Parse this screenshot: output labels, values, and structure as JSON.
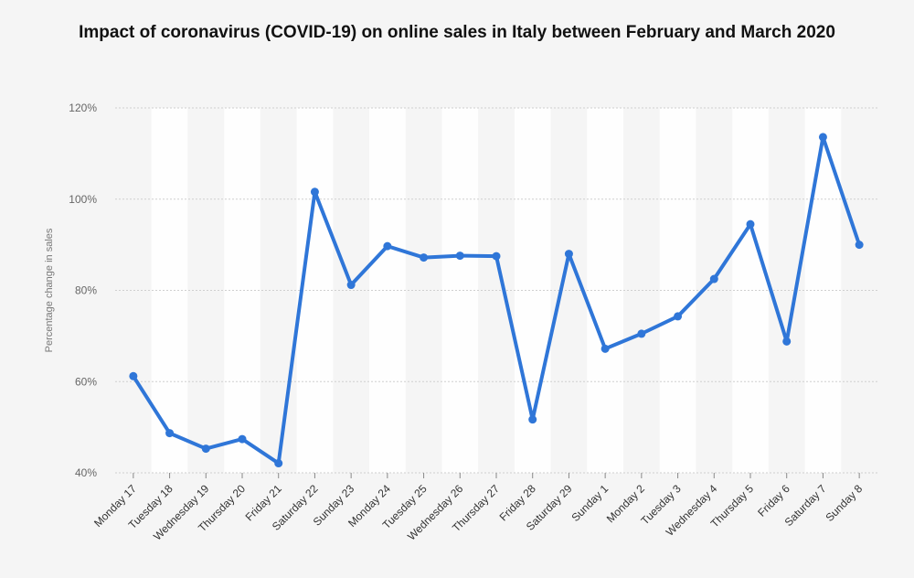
{
  "chart_data": {
    "type": "line",
    "title": "Impact of coronavirus (COVID-19) on online sales in Italy between February and March 2020",
    "xlabel": "",
    "ylabel": "Percentage change in sales",
    "ylim": [
      40,
      120
    ],
    "y_ticks": [
      "40%",
      "60%",
      "80%",
      "100%",
      "120%"
    ],
    "y_tick_values": [
      40,
      60,
      80,
      100,
      120
    ],
    "grid": true,
    "legend": "none",
    "categories": [
      "Monday 17",
      "Tuesday 18",
      "Wednesday 19",
      "Thursday 20",
      "Friday 21",
      "Saturday 22",
      "Sunday 23",
      "Monday 24",
      "Tuesday 25",
      "Wednesday 26",
      "Thursday 27",
      "Friday 28",
      "Saturday 29",
      "Sunday 1",
      "Monday 2",
      "Tuesday 3",
      "Wednesday 4",
      "Thursday 5",
      "Friday 6",
      "Saturday 7",
      "Sunday 8"
    ],
    "series": [
      {
        "values": [
          61.2,
          48.7,
          45.3,
          47.4,
          42.1,
          101.6,
          81.2,
          89.7,
          87.2,
          87.6,
          87.5,
          51.7,
          88.0,
          67.2,
          70.5,
          74.3,
          82.5,
          94.5,
          68.8,
          113.6,
          90.0
        ],
        "color": "#2f76d8"
      }
    ]
  }
}
